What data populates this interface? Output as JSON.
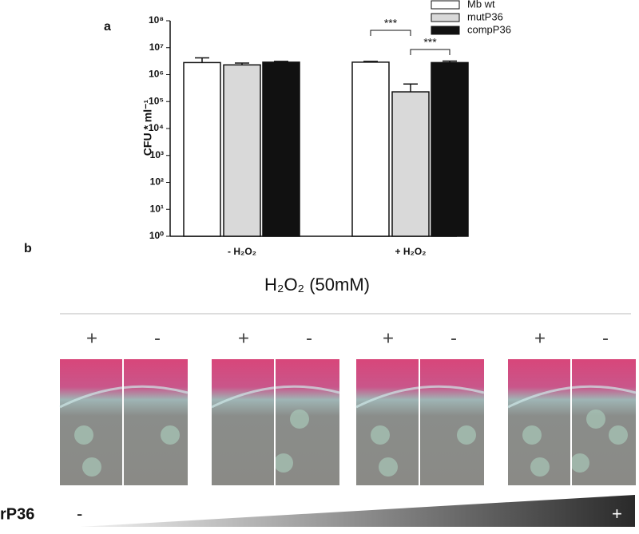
{
  "chart_data": {
    "type": "bar",
    "panel_label": "a",
    "y_label": "CFU * ml⁻¹",
    "log_scale": true,
    "categories": [
      "- H₂O₂",
      "+ H₂O₂"
    ],
    "series": [
      {
        "name": "Mb wt",
        "color": "#ffffff",
        "values": [
          2800000,
          2900000
        ],
        "errors": [
          1400000,
          200000
        ]
      },
      {
        "name": "mutP36",
        "color": "#d9d9d9",
        "values": [
          2300000,
          230000
        ],
        "errors": [
          400000,
          220000
        ]
      },
      {
        "name": "compP36",
        "color": "#111111",
        "values": [
          2900000,
          2800000
        ],
        "errors": [
          200000,
          400000
        ]
      }
    ],
    "ylim": [
      1,
      100000000
    ],
    "yticks": [
      {
        "value": 1,
        "label": "10⁰"
      },
      {
        "value": 10,
        "label": "10¹"
      },
      {
        "value": 100,
        "label": "10²"
      },
      {
        "value": 1000,
        "label": "10³"
      },
      {
        "value": 10000,
        "label": "10⁴"
      },
      {
        "value": 100000,
        "label": "10⁵"
      },
      {
        "value": 1000000,
        "label": "10⁶"
      },
      {
        "value": 10000000,
        "label": "10⁷"
      },
      {
        "value": 100000000,
        "label": "10⁸"
      }
    ],
    "annotations": [
      "***",
      "***"
    ]
  },
  "panel_b": {
    "label": "b",
    "title": "H₂O₂ (50mM)",
    "plates": [
      [
        "+",
        "-"
      ],
      [
        "+",
        "-"
      ],
      [
        "+",
        "-"
      ],
      [
        "+",
        "-"
      ]
    ],
    "gradient_label": "rP36",
    "gradient_ends": [
      "-",
      "+"
    ]
  }
}
